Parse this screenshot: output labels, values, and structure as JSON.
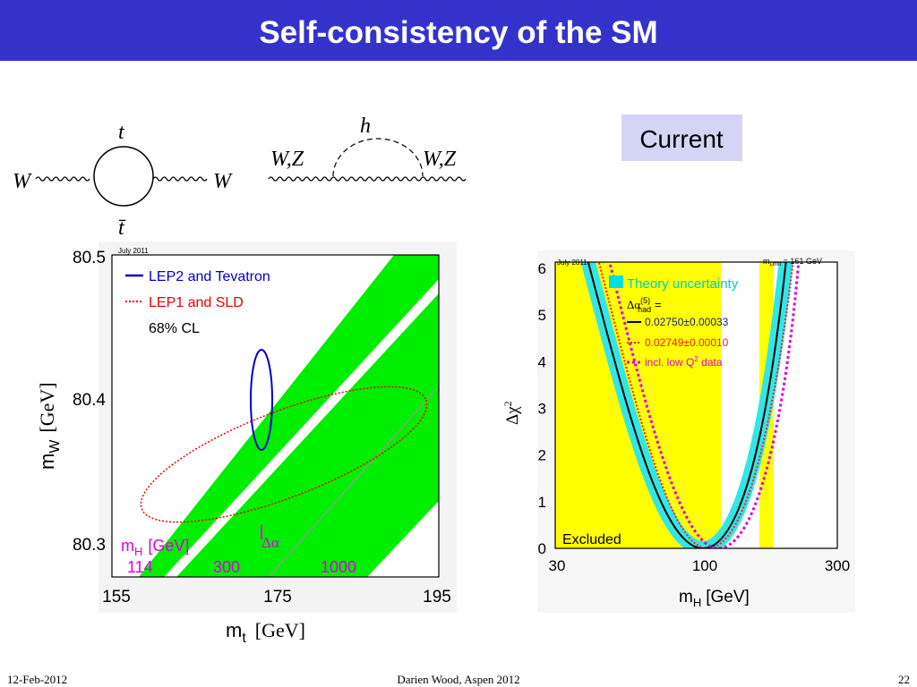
{
  "header": {
    "title": "Self-consistency of the SM"
  },
  "badge": "Current",
  "diagrams": {
    "loop": {
      "left": "W",
      "right": "W",
      "top": "t",
      "bottom": "t̄"
    },
    "higgs": {
      "left": "W,Z",
      "right": "W,Z",
      "top": "h"
    }
  },
  "plot_mw": {
    "stamp": "July 2011",
    "legend": [
      "LEP2 and Tevatron",
      "LEP1 and SLD",
      "68% CL"
    ],
    "yticks": [
      "80.5",
      "80.4",
      "80.3"
    ],
    "xticks": [
      "155",
      "175",
      "195"
    ],
    "x_label": {
      "symbol": "m",
      "sub": "t",
      "unit": "[GeV]"
    },
    "y_label": {
      "symbol": "m",
      "sub": "W",
      "unit": "[GeV]"
    },
    "mh_label": {
      "symbol": "m",
      "sub": "H",
      "unit": "[GeV]"
    },
    "mh_values": [
      "114",
      "300",
      "1000"
    ],
    "delta_alpha": "Δα"
  },
  "plot_chi2": {
    "stamp": "July 2011",
    "limit": {
      "symbol": "m",
      "sub": "Limit",
      "text": " = 161 GeV"
    },
    "legend": {
      "theory": "Theory uncertainty",
      "alpha": {
        "symbol": "Δα",
        "sup": "(5)",
        "sub": "had",
        "text": " ="
      },
      "lines": [
        "0.02750±0.00033",
        "0.02749±0.00010"
      ],
      "lowq": {
        "text": "incl. low Q",
        "sup": "2",
        "rest": " data"
      }
    },
    "excluded": "Excluded",
    "yticks": [
      "0",
      "1",
      "2",
      "3",
      "4",
      "5",
      "6"
    ],
    "xticks": [
      "30",
      "100",
      "300"
    ],
    "x_label": {
      "symbol": "m",
      "sub": "H",
      "unit": "[GeV]"
    },
    "y_label": {
      "symbol": "Δχ",
      "sup": "2"
    }
  },
  "footer": {
    "date": "12-Feb-2012",
    "center": "Darien Wood, Aspen 2012",
    "page": "22"
  }
}
